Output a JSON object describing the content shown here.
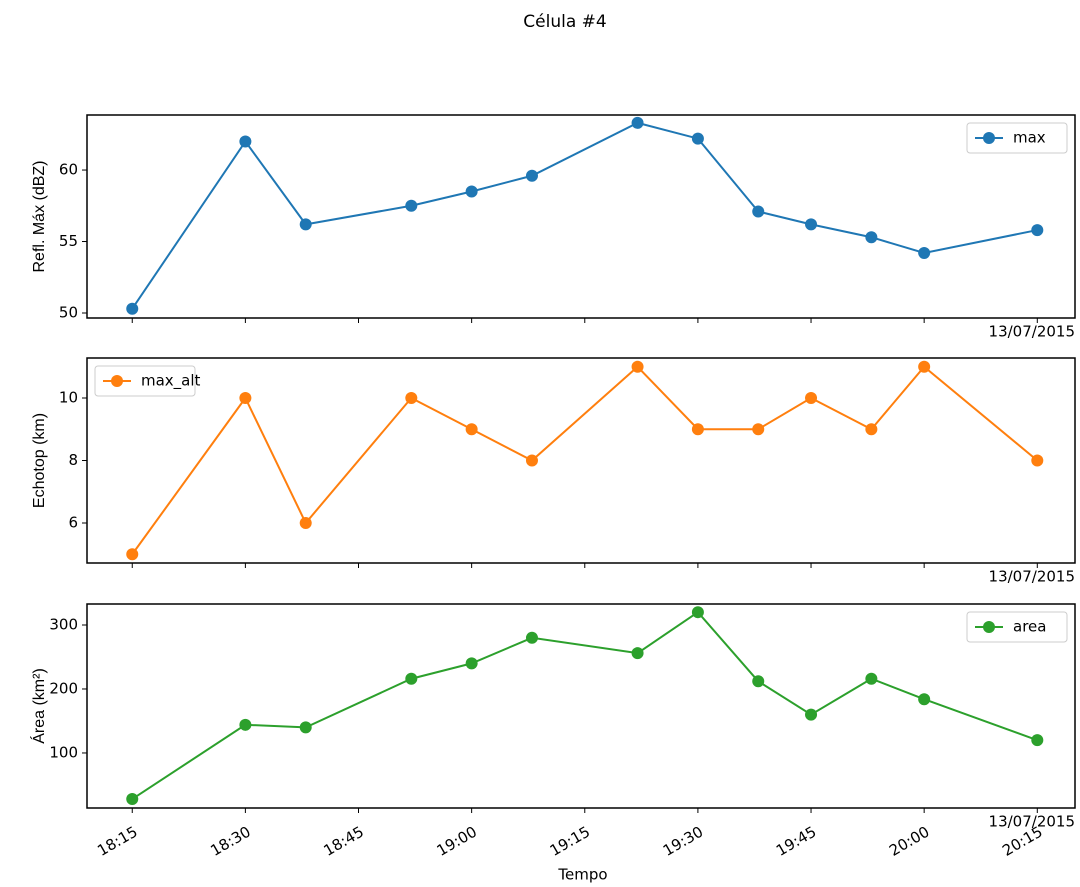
{
  "title": "Célula #4",
  "chart_data": [
    {
      "type": "line",
      "ylabel": "Refl. Máx (dBZ)",
      "offset_label": "13/07/2015",
      "legend": "upper right",
      "x": [
        "18:15",
        "18:30",
        "18:38",
        "18:52",
        "19:00",
        "19:08",
        "19:22",
        "19:30",
        "19:38",
        "19:45",
        "19:53",
        "20:00",
        "20:15"
      ],
      "series": [
        {
          "name": "max",
          "color": "#1f77b4",
          "values": [
            50.3,
            62.0,
            56.2,
            57.5,
            58.5,
            59.6,
            63.3,
            62.2,
            57.1,
            56.2,
            55.3,
            54.2,
            55.8
          ]
        }
      ],
      "xlim": [
        "18:09",
        "20:20"
      ],
      "xticks": [
        "18:15",
        "18:30",
        "18:45",
        "19:00",
        "19:15",
        "19:30",
        "19:45",
        "20:00",
        "20:15"
      ],
      "ylim": [
        49.65,
        63.85
      ],
      "yticks": [
        50,
        55,
        60
      ]
    },
    {
      "type": "line",
      "ylabel": "Echotop (km)",
      "offset_label": "13/07/2015",
      "legend": "upper left",
      "x": [
        "18:15",
        "18:30",
        "18:38",
        "18:52",
        "19:00",
        "19:08",
        "19:22",
        "19:30",
        "19:38",
        "19:45",
        "19:53",
        "20:00",
        "20:15"
      ],
      "series": [
        {
          "name": "max_alt",
          "color": "#ff7f0e",
          "values": [
            5,
            10,
            6,
            10,
            9,
            8,
            11,
            9,
            9,
            10,
            9,
            11,
            8
          ]
        }
      ],
      "xlim": [
        "18:09",
        "20:20"
      ],
      "xticks": [
        "18:15",
        "18:30",
        "18:45",
        "19:00",
        "19:15",
        "19:30",
        "19:45",
        "20:00",
        "20:15"
      ],
      "ylim": [
        4.72,
        11.28
      ],
      "yticks": [
        6,
        8,
        10
      ]
    },
    {
      "type": "line",
      "ylabel": "Área (km²)",
      "xlabel": "Tempo",
      "offset_label": "13/07/2015",
      "legend": "upper right",
      "x": [
        "18:15",
        "18:30",
        "18:38",
        "18:52",
        "19:00",
        "19:08",
        "19:22",
        "19:30",
        "19:38",
        "19:45",
        "19:53",
        "20:00",
        "20:15"
      ],
      "series": [
        {
          "name": "area",
          "color": "#2ca02c",
          "values": [
            28,
            144,
            140,
            216,
            240,
            280,
            256,
            320,
            212,
            160,
            216,
            184,
            120
          ]
        }
      ],
      "xlim": [
        "18:09",
        "20:20"
      ],
      "xticks": [
        "18:15",
        "18:30",
        "18:45",
        "19:00",
        "19:15",
        "19:30",
        "19:45",
        "20:00",
        "20:15"
      ],
      "ylim": [
        14,
        332.8
      ],
      "yticks": [
        100,
        200,
        300
      ]
    }
  ]
}
